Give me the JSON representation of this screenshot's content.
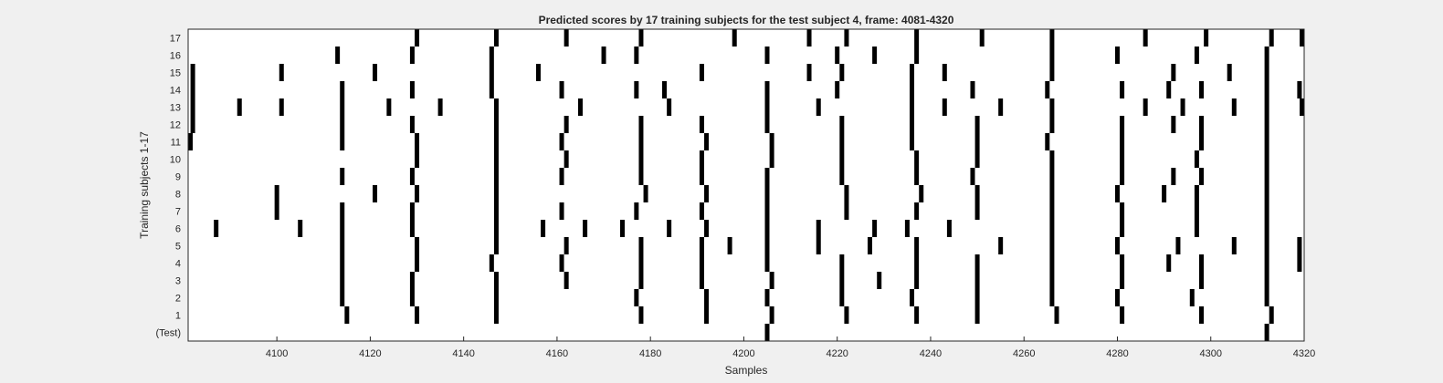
{
  "chart_data": {
    "type": "raster",
    "title": "Predicted scores by 17 training subjects for the test subject 4, frame: 4081-4320",
    "xlabel": "Samples",
    "ylabel": "Training subjects 1-17",
    "xlim": [
      4081,
      4320
    ],
    "xticks": [
      4100,
      4120,
      4140,
      4160,
      4180,
      4200,
      4220,
      4240,
      4260,
      4280,
      4300,
      4320
    ],
    "rows": [
      {
        "label": "(Test)",
        "events": [
          4205,
          4312
        ]
      },
      {
        "label": "1",
        "events": [
          4115,
          4130,
          4147,
          4178,
          4192,
          4206,
          4222,
          4237,
          4250,
          4267,
          4281,
          4298,
          4313
        ]
      },
      {
        "label": "2",
        "events": [
          4114,
          4129,
          4147,
          4177,
          4192,
          4205,
          4221,
          4236,
          4250,
          4266,
          4280,
          4296,
          4312
        ]
      },
      {
        "label": "3",
        "events": [
          4114,
          4129,
          4147,
          4162,
          4178,
          4191,
          4206,
          4221,
          4229,
          4237,
          4250,
          4266,
          4281,
          4298,
          4312
        ]
      },
      {
        "label": "4",
        "events": [
          4114,
          4130,
          4146,
          4161,
          4178,
          4191,
          4205,
          4221,
          4237,
          4250,
          4266,
          4281,
          4291,
          4298,
          4312,
          4319
        ]
      },
      {
        "label": "5",
        "events": [
          4114,
          4130,
          4147,
          4162,
          4178,
          4191,
          4197,
          4205,
          4216,
          4227,
          4237,
          4255,
          4266,
          4280,
          4293,
          4305,
          4312,
          4319
        ]
      },
      {
        "label": "6",
        "events": [
          4087,
          4105,
          4114,
          4129,
          4147,
          4157,
          4166,
          4174,
          4184,
          4192,
          4205,
          4216,
          4228,
          4235,
          4244,
          4266,
          4281,
          4297,
          4312
        ]
      },
      {
        "label": "7",
        "events": [
          4100,
          4114,
          4129,
          4147,
          4161,
          4177,
          4191,
          4205,
          4222,
          4237,
          4250,
          4266,
          4281,
          4297,
          4312
        ]
      },
      {
        "label": "8",
        "events": [
          4100,
          4121,
          4130,
          4147,
          4179,
          4192,
          4205,
          4222,
          4238,
          4250,
          4266,
          4280,
          4290,
          4297,
          4312
        ]
      },
      {
        "label": "9",
        "events": [
          4114,
          4129,
          4147,
          4161,
          4178,
          4191,
          4205,
          4221,
          4237,
          4249,
          4266,
          4281,
          4292,
          4298,
          4312
        ]
      },
      {
        "label": "10",
        "events": [
          4130,
          4147,
          4162,
          4178,
          4191,
          4206,
          4221,
          4237,
          4250,
          4266,
          4281,
          4297,
          4312
        ]
      },
      {
        "label": "11",
        "events": [
          4081,
          4114,
          4130,
          4147,
          4161,
          4178,
          4192,
          4206,
          4221,
          4236,
          4250,
          4265,
          4281,
          4298,
          4312
        ]
      },
      {
        "label": "12",
        "events": [
          4082,
          4114,
          4129,
          4147,
          4162,
          4178,
          4191,
          4205,
          4221,
          4236,
          4250,
          4266,
          4281,
          4292,
          4298,
          4312
        ]
      },
      {
        "label": "13",
        "events": [
          4082,
          4092,
          4101,
          4114,
          4124,
          4135,
          4147,
          4165,
          4184,
          4205,
          4216,
          4236,
          4243,
          4255,
          4266,
          4286,
          4294,
          4305,
          4312,
          4320
        ]
      },
      {
        "label": "14",
        "events": [
          4082,
          4114,
          4129,
          4146,
          4161,
          4177,
          4183,
          4205,
          4220,
          4236,
          4249,
          4265,
          4281,
          4291,
          4298,
          4312,
          4319
        ]
      },
      {
        "label": "15",
        "events": [
          4082,
          4101,
          4121,
          4146,
          4156,
          4191,
          4214,
          4221,
          4236,
          4243,
          4266,
          4292,
          4304,
          4312
        ]
      },
      {
        "label": "16",
        "events": [
          4113,
          4129,
          4146,
          4170,
          4177,
          4205,
          4220,
          4228,
          4237,
          4266,
          4280,
          4297,
          4312
        ]
      },
      {
        "label": "17",
        "events": [
          4130,
          4147,
          4162,
          4178,
          4198,
          4214,
          4222,
          4237,
          4251,
          4266,
          4286,
          4299,
          4313,
          4320
        ]
      }
    ]
  }
}
